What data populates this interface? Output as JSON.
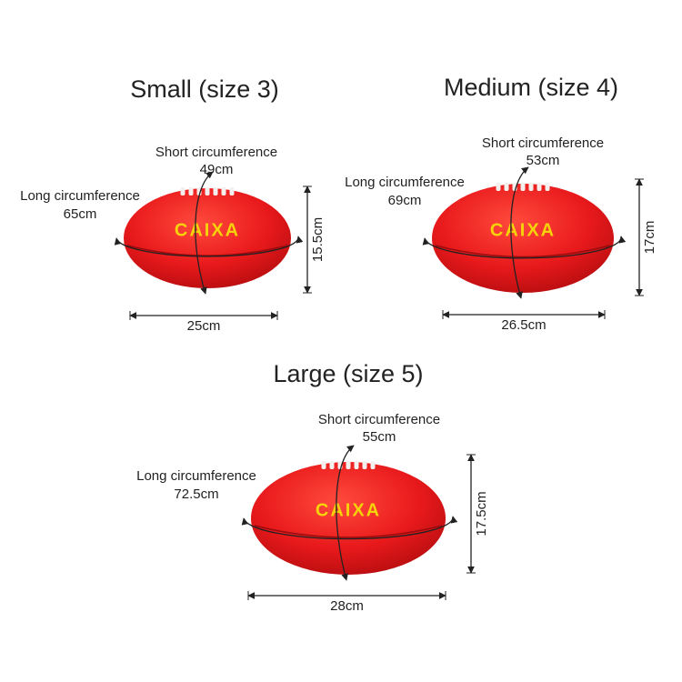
{
  "balls": [
    {
      "title": "Small (size 3)",
      "short_label": "Short circumference",
      "short_value": "49cm",
      "long_label": "Long circumference",
      "long_value": "65cm",
      "width": "25cm",
      "height": "15.5cm",
      "brand": "CAIXA"
    },
    {
      "title": "Medium (size 4)",
      "short_label": "Short circumference",
      "short_value": "53cm",
      "long_label": "Long circumference",
      "long_value": "69cm",
      "width": "26.5cm",
      "height": "17cm",
      "brand": "CAIXA"
    },
    {
      "title": "Large (size 5)",
      "short_label": "Short circumference",
      "short_value": "55cm",
      "long_label": "Long circumference",
      "long_value": "72.5cm",
      "width": "28cm",
      "height": "17.5cm",
      "brand": "CAIXA"
    }
  ]
}
